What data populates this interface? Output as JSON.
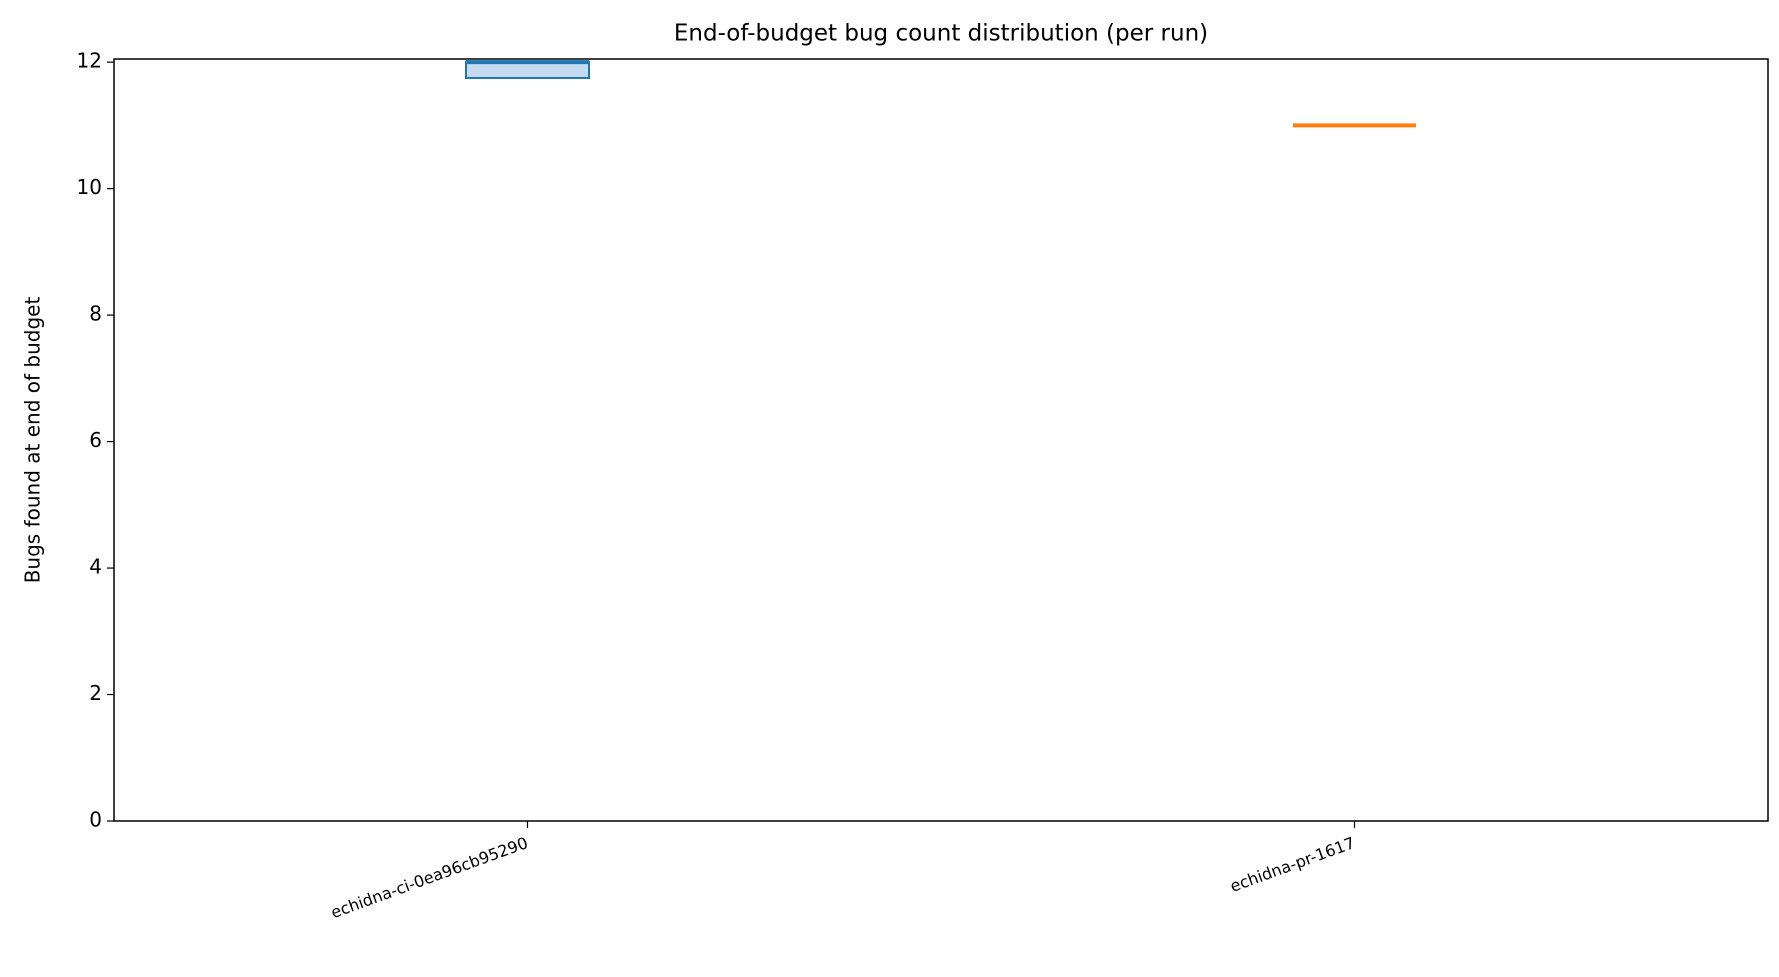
{
  "chart_data": {
    "type": "box",
    "title": "End-of-budget bug count distribution (per run)",
    "y_label": "Bugs found at end of budget",
    "categories": [
      "echidna-ci-0ea96cb95290",
      "echidna-pr-1617"
    ],
    "boxes": [
      {
        "min": 11.75,
        "q1": 11.75,
        "median": 12,
        "q3": 12,
        "max": 12
      },
      {
        "min": 11,
        "q1": 11,
        "median": 11,
        "q3": 11,
        "max": 11
      }
    ],
    "colors": [
      "#1f77b4",
      "#ff7f0e"
    ],
    "box_fill": "#c6dbef",
    "ylim": [
      0,
      12.05
    ],
    "yticks": [
      0,
      2,
      4,
      6,
      8,
      10,
      12
    ]
  }
}
